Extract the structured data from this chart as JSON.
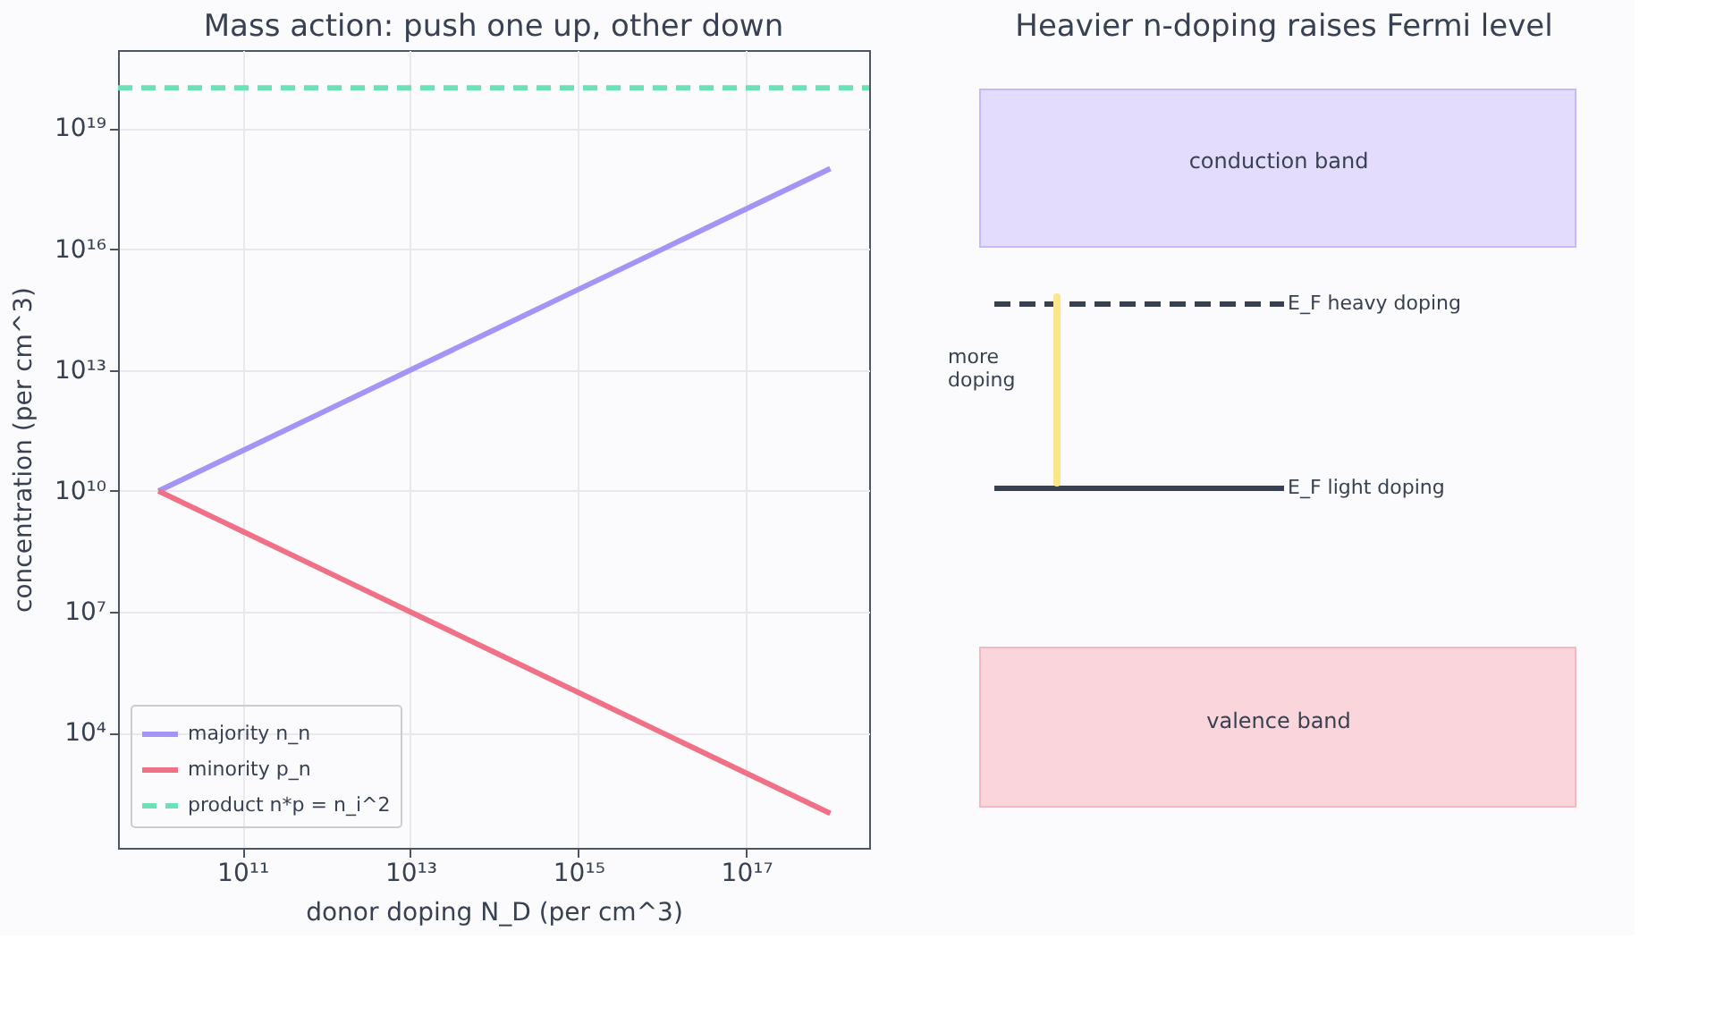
{
  "chart_data": [
    {
      "type": "line",
      "title": "Mass action: push one up, other down",
      "xlabel": "donor doping N_D  (per cm^3)",
      "ylabel": "concentration (per cm^3)",
      "log": "xy",
      "grid": true,
      "legend": "left",
      "marker": "none",
      "xlim": [
        3300000000.0,
        2.9e+18
      ],
      "ylim": [
        14.0,
        8.7e+20
      ],
      "xticks": [
        {
          "value": 100000000000.0,
          "label": "10¹¹"
        },
        {
          "value": 10000000000000.0,
          "label": "10¹³"
        },
        {
          "value": 1000000000000000.0,
          "label": "10¹⁵"
        },
        {
          "value": 1e+17,
          "label": "10¹⁷"
        }
      ],
      "yticks": [
        {
          "value": 10000.0,
          "label": "10⁴"
        },
        {
          "value": 10000000.0,
          "label": "10⁷"
        },
        {
          "value": 10000000000.0,
          "label": "10¹⁰"
        },
        {
          "value": 10000000000000.0,
          "label": "10¹³"
        },
        {
          "value": 1e+16,
          "label": "10¹⁶"
        },
        {
          "value": 1e+19,
          "label": "10¹⁹"
        }
      ],
      "series": [
        {
          "name": "majority n_n",
          "color": "#a593f5",
          "line_style": "solid",
          "x": [
            10000000000.0,
            100000000000.0,
            1000000000000.0,
            10000000000000.0,
            100000000000000.0,
            1000000000000000.0,
            1e+16,
            1e+17,
            1e+18
          ],
          "values": [
            10000000000.0,
            100000000000.0,
            1000000000000.0,
            10000000000000.0,
            100000000000000.0,
            1000000000000000.0,
            1e+16,
            1e+17,
            1e+18
          ]
        },
        {
          "name": "minority p_n",
          "color": "#f07085",
          "line_style": "solid",
          "x": [
            10000000000.0,
            100000000000.0,
            1000000000000.0,
            10000000000000.0,
            100000000000000.0,
            1000000000000000.0,
            1e+16,
            1e+17,
            1e+18
          ],
          "values": [
            10000000000.0,
            1000000000.0,
            100000000.0,
            10000000.0,
            1000000.0,
            100000.0,
            10000.0,
            1000.0,
            100.0
          ]
        },
        {
          "name": "product n*p = n_i^2",
          "color": "#6ee0b5",
          "line_style": "dashed",
          "x": [
            3300000000.0,
            2.9e+18
          ],
          "values": [
            1e+20,
            1e+20
          ]
        }
      ]
    },
    {
      "type": "other",
      "title": "Heavier n-doping raises Fermi level",
      "annotations": [
        "conduction band",
        "valence band",
        "E_F heavy doping",
        "E_F light doping",
        "more\ndoping"
      ]
    }
  ]
}
